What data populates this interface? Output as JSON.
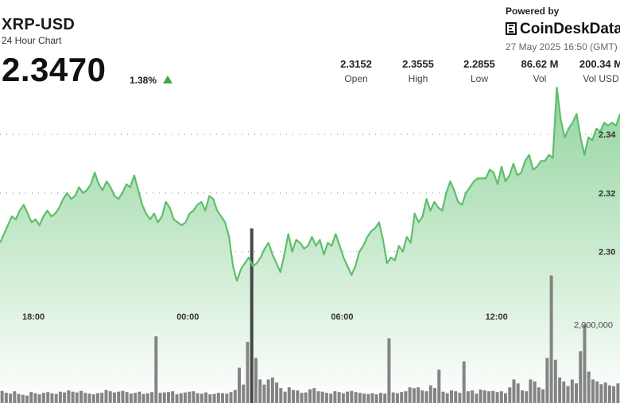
{
  "header": {
    "symbol": "XRP-USD",
    "subtitle": "24 Hour Chart",
    "price": "2.3470",
    "change_pct": "1.38%",
    "change_direction": "up",
    "powered_by": "Powered by",
    "brand": "CoinDeskData",
    "timestamp": "27 May 2025 16:50 (GMT)"
  },
  "stats": [
    {
      "value": "2.3152",
      "label": "Open"
    },
    {
      "value": "2.3555",
      "label": "High"
    },
    {
      "value": "2.2855",
      "label": "Low"
    },
    {
      "value": "86.62 M",
      "label": "Vol"
    },
    {
      "value": "200.34 M",
      "label": "Vol USD"
    }
  ],
  "colors": {
    "line": "#5dbf6b",
    "area_top": "#8fd39a",
    "area_bottom": "#ffffff",
    "volume_bar": "#777777",
    "highlight_bar": "#333333",
    "up_arrow": "#3ea84a"
  },
  "chart_data": {
    "type": "line",
    "title": "",
    "xlabel": "",
    "ylabel": "",
    "x_ticks": [
      "18:00",
      "00:00",
      "06:00",
      "12:00"
    ],
    "x_tick_hours": [
      18,
      24,
      30,
      36
    ],
    "x_range_hours": [
      16.7,
      40.8
    ],
    "ylim": [
      2.2855,
      2.3555
    ],
    "y_ticks": [
      2.3,
      2.32,
      2.34
    ],
    "y_tick_labels": [
      "2.30",
      "2.32",
      "2.34"
    ],
    "grid": true,
    "series": [
      {
        "values": [
          2.303,
          2.306,
          2.309,
          2.312,
          2.311,
          2.314,
          2.316,
          2.313,
          2.31,
          2.311,
          2.309,
          2.312,
          2.314,
          2.312,
          2.313,
          2.315,
          2.318,
          2.32,
          2.318,
          2.319,
          2.322,
          2.32,
          2.321,
          2.323,
          2.327,
          2.323,
          2.321,
          2.324,
          2.322,
          2.319,
          2.318,
          2.32,
          2.323,
          2.322,
          2.326,
          2.321,
          2.316,
          2.313,
          2.311,
          2.313,
          2.31,
          2.312,
          2.317,
          2.315,
          2.311,
          2.31,
          2.309,
          2.31,
          2.313,
          2.314,
          2.316,
          2.317,
          2.314,
          2.319,
          2.318,
          2.314,
          2.312,
          2.31,
          2.305,
          2.295,
          2.29,
          2.294,
          2.296,
          2.298,
          2.295,
          2.296,
          2.298,
          2.301,
          2.303,
          2.299,
          2.296,
          2.293,
          2.299,
          2.306,
          2.3,
          2.304,
          2.303,
          2.301,
          2.302,
          2.305,
          2.302,
          2.304,
          2.299,
          2.303,
          2.302,
          2.306,
          2.302,
          2.298,
          2.295,
          2.292,
          2.295,
          2.3,
          2.302,
          2.305,
          2.307,
          2.308,
          2.31,
          2.304,
          2.296,
          2.298,
          2.297,
          2.302,
          2.3,
          2.305,
          2.303,
          2.313,
          2.31,
          2.312,
          2.318,
          2.314,
          2.317,
          2.315,
          2.314,
          2.32,
          2.324,
          2.321,
          2.317,
          2.316,
          2.32,
          2.322,
          2.324,
          2.325,
          2.325,
          2.325,
          2.328,
          2.327,
          2.323,
          2.329,
          2.324,
          2.326,
          2.33,
          2.326,
          2.327,
          2.331,
          2.333,
          2.328,
          2.329,
          2.331,
          2.331,
          2.333,
          2.332,
          2.356,
          2.345,
          2.339,
          2.342,
          2.344,
          2.347,
          2.339,
          2.333,
          2.339,
          2.338,
          2.342,
          2.341,
          2.344,
          2.343,
          2.344,
          2.343,
          2.347
        ]
      }
    ],
    "volume": {
      "label": "2,000,000",
      "reference": 2000000,
      "values": [
        310000,
        260000,
        240000,
        300000,
        230000,
        210000,
        190000,
        280000,
        250000,
        220000,
        260000,
        280000,
        250000,
        230000,
        290000,
        270000,
        320000,
        290000,
        270000,
        310000,
        260000,
        240000,
        220000,
        250000,
        260000,
        330000,
        300000,
        270000,
        290000,
        310000,
        280000,
        240000,
        260000,
        290000,
        230000,
        250000,
        280000,
        1700000,
        260000,
        270000,
        280000,
        300000,
        220000,
        250000,
        270000,
        290000,
        300000,
        250000,
        240000,
        270000,
        220000,
        230000,
        260000,
        250000,
        240000,
        280000,
        330000,
        900000,
        470000,
        1560000,
        4450000,
        1150000,
        600000,
        470000,
        600000,
        650000,
        520000,
        380000,
        290000,
        400000,
        330000,
        320000,
        260000,
        270000,
        350000,
        380000,
        300000,
        290000,
        260000,
        240000,
        300000,
        280000,
        250000,
        290000,
        310000,
        280000,
        260000,
        240000,
        230000,
        250000,
        220000,
        260000,
        240000,
        1650000,
        270000,
        250000,
        280000,
        300000,
        400000,
        380000,
        400000,
        320000,
        300000,
        450000,
        380000,
        850000,
        290000,
        250000,
        320000,
        300000,
        260000,
        1060000,
        300000,
        320000,
        240000,
        340000,
        320000,
        300000,
        310000,
        280000,
        300000,
        250000,
        400000,
        600000,
        500000,
        320000,
        300000,
        600000,
        550000,
        400000,
        350000,
        1150000,
        3250000,
        1100000,
        650000,
        550000,
        430000,
        600000,
        500000,
        1320000,
        2000000,
        800000,
        600000,
        550000,
        480000,
        520000,
        450000,
        430000,
        500000
      ]
    }
  }
}
